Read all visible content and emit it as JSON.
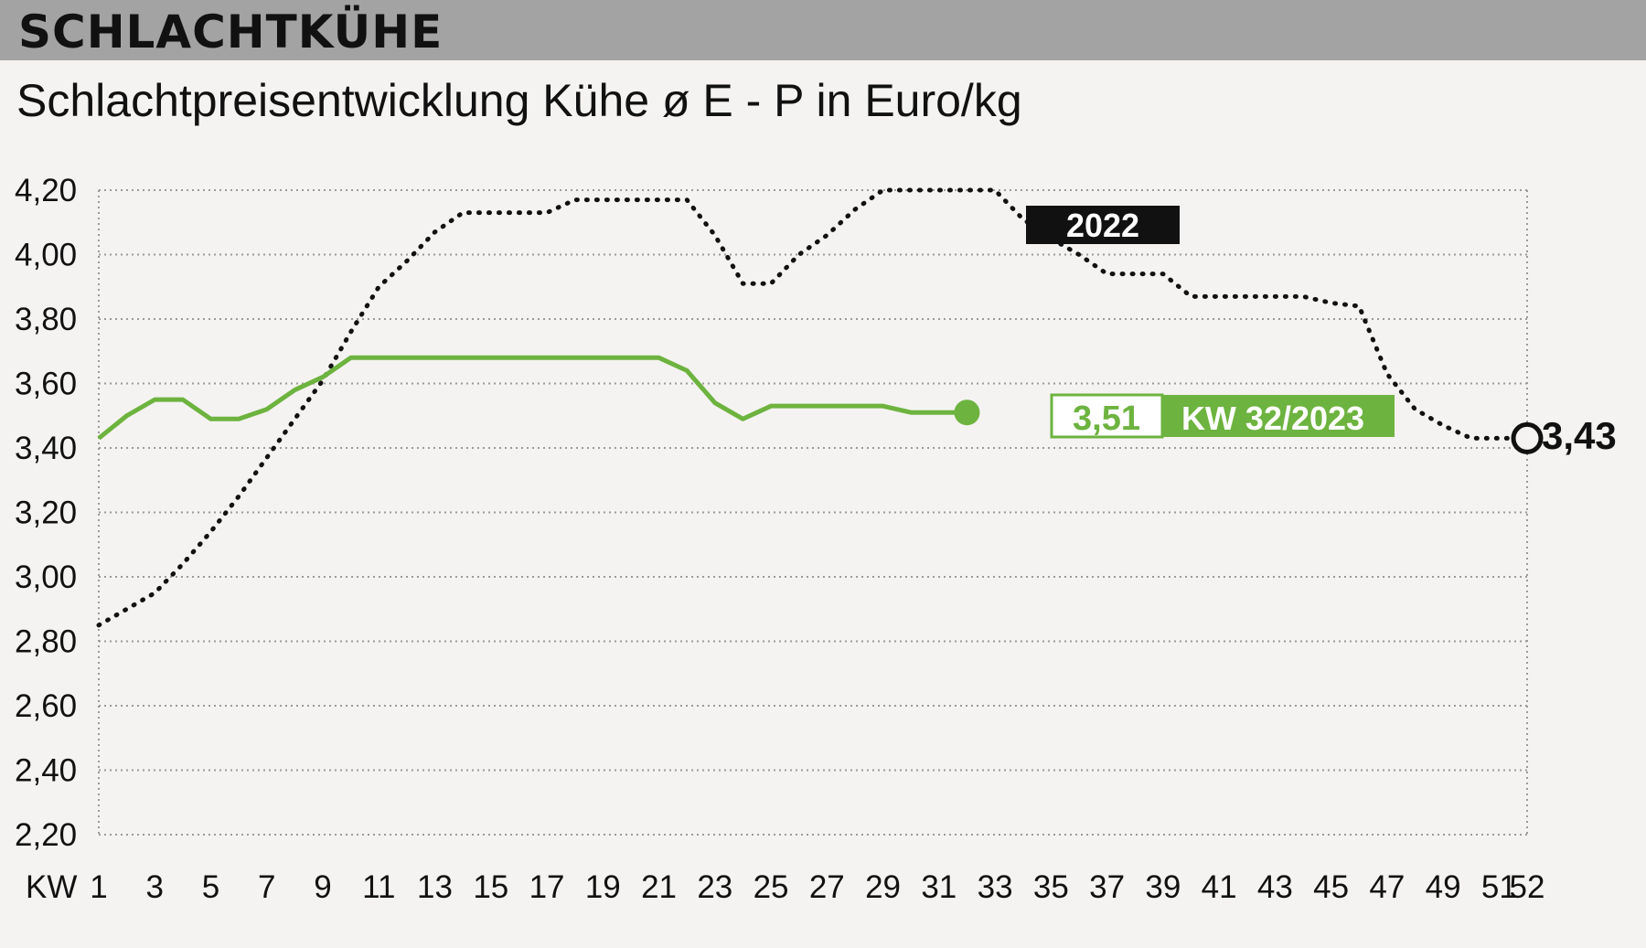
{
  "header": {
    "title": "SCHLACHTKÜHE"
  },
  "subtitle": "Schlachtpreisentwicklung Kühe ø E - P in Euro/kg",
  "chart_data": {
    "type": "line",
    "title": "Schlachtpreisentwicklung Kühe ø E - P in Euro/kg",
    "xlabel": "KW",
    "ylabel": "",
    "xlim": [
      1,
      52
    ],
    "ylim": [
      2.2,
      4.2
    ],
    "x_ticks": [
      "1",
      "3",
      "5",
      "7",
      "9",
      "11",
      "13",
      "15",
      "17",
      "19",
      "21",
      "23",
      "25",
      "27",
      "29",
      "31",
      "33",
      "35",
      "37",
      "39",
      "41",
      "43",
      "45",
      "47",
      "49",
      "51",
      "52"
    ],
    "y_ticks": [
      "4,20",
      "4,00",
      "3,80",
      "3,60",
      "3,40",
      "3,20",
      "3,00",
      "2,80",
      "2,60",
      "2,40",
      "2,20"
    ],
    "grid": true,
    "colors": {
      "current": "#6db33f",
      "previous": "#111111"
    },
    "series": [
      {
        "name": "2022",
        "style": "dotted",
        "x": [
          1,
          3,
          4,
          5,
          6,
          7,
          8,
          9,
          10,
          11,
          12,
          13,
          14,
          15,
          16,
          17,
          18,
          19,
          20,
          21,
          22,
          23,
          24,
          25,
          26,
          27,
          28,
          29,
          30,
          31,
          32,
          33,
          34,
          35,
          36,
          37,
          38,
          39,
          40,
          41,
          42,
          43,
          44,
          45,
          46,
          47,
          48,
          49,
          50,
          51,
          52
        ],
        "values": [
          2.85,
          2.95,
          3.04,
          3.14,
          3.25,
          3.37,
          3.49,
          3.61,
          3.76,
          3.9,
          3.98,
          4.07,
          4.13,
          4.13,
          4.13,
          4.13,
          4.17,
          4.17,
          4.17,
          4.17,
          4.17,
          4.06,
          3.91,
          3.91,
          4.0,
          4.06,
          4.14,
          4.2,
          4.2,
          4.2,
          4.2,
          4.2,
          4.11,
          4.05,
          4.0,
          3.94,
          3.94,
          3.94,
          3.87,
          3.87,
          3.87,
          3.87,
          3.87,
          3.85,
          3.84,
          3.63,
          3.52,
          3.47,
          3.43,
          3.43,
          3.43
        ],
        "end_label": "2022",
        "end_value_label": "3,43"
      },
      {
        "name": "KW 32/2023",
        "style": "solid",
        "x": [
          1,
          2,
          3,
          4,
          5,
          6,
          7,
          8,
          9,
          10,
          11,
          12,
          13,
          14,
          15,
          16,
          17,
          18,
          19,
          20,
          21,
          22,
          23,
          24,
          25,
          26,
          27,
          28,
          29,
          30,
          31,
          32
        ],
        "values": [
          3.43,
          3.5,
          3.55,
          3.55,
          3.49,
          3.49,
          3.52,
          3.58,
          3.62,
          3.68,
          3.68,
          3.68,
          3.68,
          3.68,
          3.68,
          3.68,
          3.68,
          3.68,
          3.68,
          3.68,
          3.68,
          3.64,
          3.54,
          3.49,
          3.53,
          3.53,
          3.53,
          3.53,
          3.53,
          3.51,
          3.51,
          3.51
        ],
        "end_value_label": "3,51",
        "end_label": "KW 32/2023"
      }
    ]
  }
}
